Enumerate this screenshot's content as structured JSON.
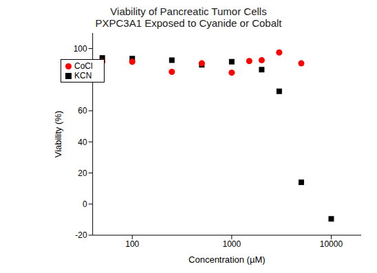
{
  "chart_data": {
    "type": "scatter",
    "title": "Viability of Pancreatic Tumor Cells\nPXPC3A1 Exposed to Cyanide or Cobalt",
    "x_label": "Concentration (µM)",
    "y_label": "Viability (%)",
    "log": "x",
    "xlim": [
      40,
      20000
    ],
    "xticks": [
      100,
      1000,
      10000
    ],
    "ylim": [
      -20,
      110
    ],
    "yticks": [
      -20,
      0,
      20,
      40,
      60,
      80,
      100
    ],
    "legend": "upper left",
    "grid": false,
    "series": [
      {
        "name": "KCN",
        "color": "#000000",
        "marker": "square",
        "x": [
          50,
          100,
          250,
          500,
          1000,
          2000,
          3000,
          5000,
          10000
        ],
        "values": [
          94,
          93.5,
          92.5,
          89.5,
          91.5,
          86.5,
          72.5,
          14,
          -9.5
        ]
      },
      {
        "name": "CoCl",
        "color": "#ff0000",
        "marker": "circle",
        "x": [
          50,
          100,
          250,
          500,
          1000,
          1500,
          2000,
          3000,
          5000
        ],
        "values": [
          91.5,
          91.5,
          85,
          90.5,
          84.5,
          92,
          92.5,
          97.5,
          90.5
        ]
      }
    ]
  }
}
